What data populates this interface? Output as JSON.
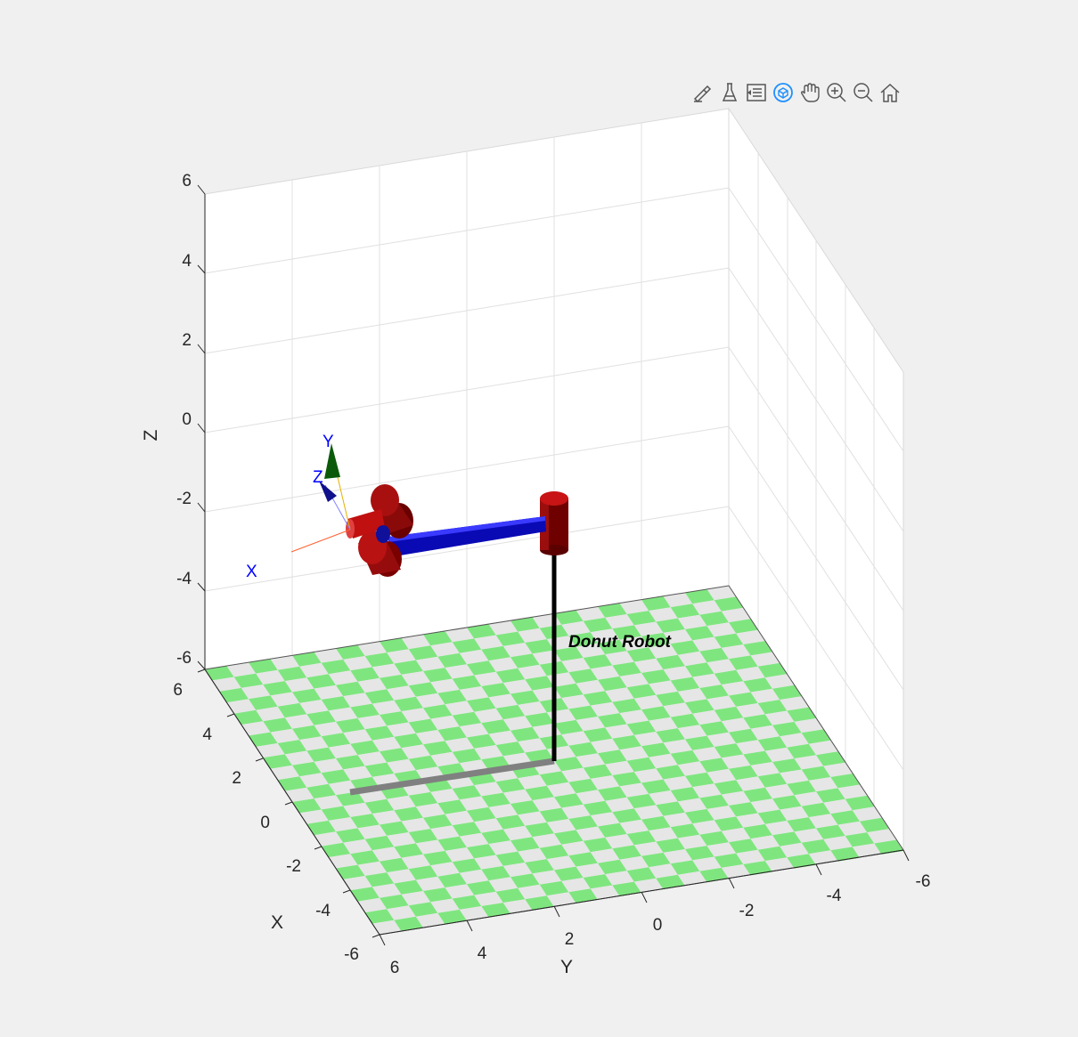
{
  "toolbar": {
    "icons": [
      "brush-edit-icon",
      "data-tip-icon",
      "legend-icon",
      "rotate-3d-icon",
      "pan-hand-icon",
      "zoom-in-icon",
      "zoom-out-icon",
      "home-icon"
    ],
    "active_color": "#1e90ff",
    "icon_color": "#555555"
  },
  "axes": {
    "x_label": "X",
    "y_label": "Y",
    "z_label": "Z",
    "z_ticks": [
      "6",
      "4",
      "2",
      "0",
      "-2",
      "-4",
      "-6"
    ],
    "x_ticks": [
      "6",
      "4",
      "2",
      "0",
      "-2",
      "-4",
      "-6"
    ],
    "y_ticks": [
      "6",
      "4",
      "2",
      "0",
      "-2",
      "-4",
      "-6"
    ]
  },
  "floor": {
    "color_a": "#7fe67f",
    "color_b": "#e6e6e6"
  },
  "robot": {
    "name": "Donut Robot",
    "frame_labels": {
      "x": "X",
      "y": "Y",
      "z": "Z"
    },
    "colors": {
      "joint": "#b01010",
      "link": "#1010e0",
      "base": "#000000",
      "shadow": "#808080"
    }
  }
}
